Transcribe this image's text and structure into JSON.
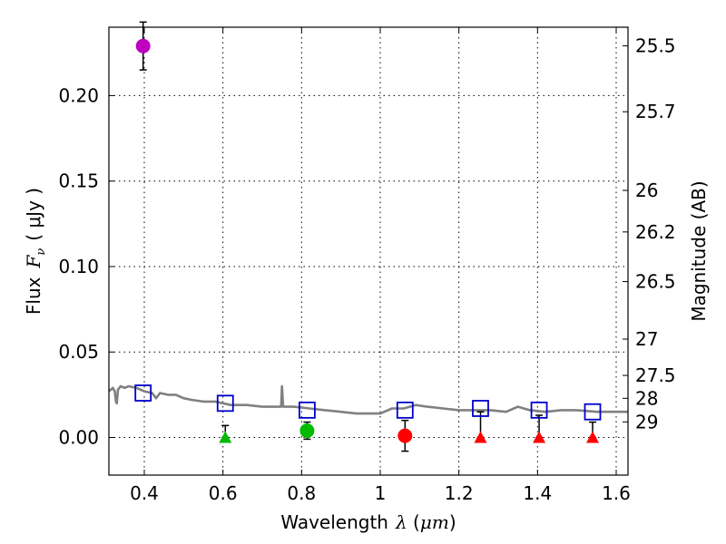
{
  "chart_data": {
    "type": "scatter",
    "xlabel_text": "Wavelength",
    "xlabel_symbol": "λ",
    "xlabel_unit_open": " (",
    "xlabel_unit": "μm",
    "xlabel_unit_close": ")",
    "ylabel_text": "Flux",
    "ylabel_symbol": "F",
    "ylabel_sub": "ν",
    "ylabel_unit": "( μJy )",
    "y2label": "Magnitude (AB)",
    "xlim": [
      0.31,
      1.63
    ],
    "ylim": [
      -0.022,
      0.24
    ],
    "xticks": [
      0.4,
      0.6,
      0.8,
      1.0,
      1.2,
      1.4,
      1.6
    ],
    "xtick_labels": [
      "0.4",
      "0.6",
      "0.8",
      "1",
      "1.2",
      "1.4",
      "1.6"
    ],
    "yticks": [
      0.0,
      0.05,
      0.1,
      0.15,
      0.2
    ],
    "ytick_labels": [
      "0.00",
      "0.05",
      "0.10",
      "0.15",
      "0.20"
    ],
    "y2ticks": [
      {
        "label": "25.5",
        "mag": 25.5
      },
      {
        "label": "25.7",
        "mag": 25.7
      },
      {
        "label": "26",
        "mag": 26.0
      },
      {
        "label": "26.2",
        "mag": 26.2
      },
      {
        "label": "26.5",
        "mag": 26.5
      },
      {
        "label": "27",
        "mag": 27.0
      },
      {
        "label": "27.5",
        "mag": 27.5
      },
      {
        "label": "28",
        "mag": 28.0
      },
      {
        "label": "29",
        "mag": 29.0
      }
    ],
    "grid": true,
    "colors": {
      "sed": "#808080",
      "model": "#0000cc",
      "violet": "#bf00bf",
      "green": "#00bb00",
      "red": "#ff0000",
      "error": "#000000",
      "grid": "#000000"
    },
    "sed_model": [
      [
        0.31,
        0.027
      ],
      [
        0.32,
        0.029
      ],
      [
        0.325,
        0.027
      ],
      [
        0.328,
        0.021
      ],
      [
        0.33,
        0.02
      ],
      [
        0.333,
        0.028
      ],
      [
        0.34,
        0.03
      ],
      [
        0.35,
        0.029
      ],
      [
        0.36,
        0.03
      ],
      [
        0.38,
        0.029
      ],
      [
        0.4,
        0.027
      ],
      [
        0.42,
        0.026
      ],
      [
        0.43,
        0.023
      ],
      [
        0.44,
        0.026
      ],
      [
        0.46,
        0.025
      ],
      [
        0.48,
        0.025
      ],
      [
        0.5,
        0.023
      ],
      [
        0.52,
        0.022
      ],
      [
        0.55,
        0.021
      ],
      [
        0.58,
        0.021
      ],
      [
        0.62,
        0.019
      ],
      [
        0.66,
        0.019
      ],
      [
        0.7,
        0.018
      ],
      [
        0.74,
        0.018
      ],
      [
        0.748,
        0.018
      ],
      [
        0.75,
        0.03
      ],
      [
        0.753,
        0.018
      ],
      [
        0.78,
        0.018
      ],
      [
        0.82,
        0.017
      ],
      [
        0.86,
        0.016
      ],
      [
        0.9,
        0.015
      ],
      [
        0.94,
        0.014
      ],
      [
        0.98,
        0.014
      ],
      [
        1.0,
        0.014
      ],
      [
        1.03,
        0.017
      ],
      [
        1.06,
        0.017
      ],
      [
        1.09,
        0.019
      ],
      [
        1.12,
        0.018
      ],
      [
        1.16,
        0.017
      ],
      [
        1.2,
        0.016
      ],
      [
        1.24,
        0.016
      ],
      [
        1.28,
        0.016
      ],
      [
        1.32,
        0.015
      ],
      [
        1.35,
        0.018
      ],
      [
        1.38,
        0.016
      ],
      [
        1.42,
        0.015
      ],
      [
        1.46,
        0.016
      ],
      [
        1.5,
        0.016
      ],
      [
        1.55,
        0.015
      ],
      [
        1.6,
        0.015
      ],
      [
        1.63,
        0.015
      ]
    ],
    "model_points": [
      {
        "x": 0.397,
        "y": 0.026
      },
      {
        "x": 0.606,
        "y": 0.02
      },
      {
        "x": 0.814,
        "y": 0.016
      },
      {
        "x": 1.063,
        "y": 0.016
      },
      {
        "x": 1.255,
        "y": 0.017
      },
      {
        "x": 1.404,
        "y": 0.016
      },
      {
        "x": 1.54,
        "y": 0.015
      }
    ],
    "detections": [
      {
        "x": 0.397,
        "y": 0.229,
        "err": 0.014,
        "color": "violet"
      },
      {
        "x": 0.814,
        "y": 0.004,
        "err": 0.005,
        "color": "green"
      },
      {
        "x": 1.063,
        "y": 0.001,
        "err": 0.009,
        "color": "red"
      }
    ],
    "upper_limits": [
      {
        "x": 0.606,
        "y": 0.0,
        "err_top": 0.007,
        "color": "green"
      },
      {
        "x": 1.255,
        "y": 0.0,
        "err_top": 0.015,
        "color": "red"
      },
      {
        "x": 1.404,
        "y": 0.0,
        "err_top": 0.013,
        "color": "red"
      },
      {
        "x": 1.54,
        "y": 0.0,
        "err_top": 0.009,
        "color": "red"
      }
    ]
  }
}
